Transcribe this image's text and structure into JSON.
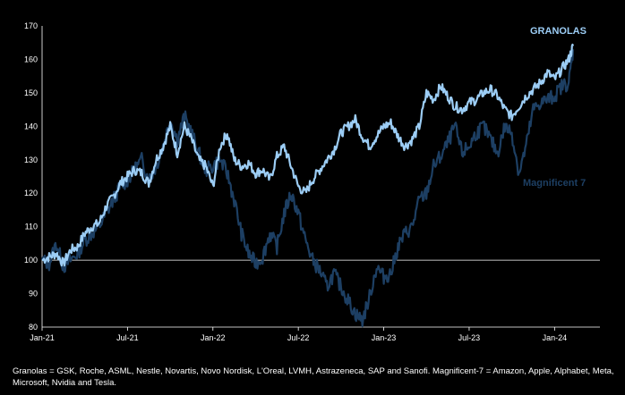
{
  "footnote": "Granolas = GSK, Roche, ASML, Nestle, Novartis, Novo Nordisk, L'Oreal, LVMH, Astrazeneca, SAP and Sanofi. Magnificent-7 = Amazon, Apple, Alphabet, Meta, Microsoft, Nvidia and Tesla.",
  "colors": {
    "granolas": "#9ccdf5",
    "magnificent": "#1d3f63",
    "axis": "#ffffff"
  },
  "chart_data": {
    "type": "line",
    "title": "",
    "xlabel": "",
    "ylabel": "",
    "ylim": [
      80,
      170
    ],
    "xlim": [
      0,
      40
    ],
    "reference_line": 100,
    "x_ticks": [
      {
        "x": 0,
        "label": "Jan-21"
      },
      {
        "x": 6,
        "label": "Jul-21"
      },
      {
        "x": 12,
        "label": "Jan-22"
      },
      {
        "x": 18,
        "label": "Jul-22"
      },
      {
        "x": 24,
        "label": "Jan-23"
      },
      {
        "x": 30,
        "label": "Jul-23"
      },
      {
        "x": 36,
        "label": "Jan-24"
      }
    ],
    "y_ticks": [
      80,
      90,
      100,
      110,
      120,
      130,
      140,
      150,
      160,
      170
    ],
    "series": [
      {
        "name": "GRANOLAS",
        "x": [
          0,
          0.5,
          1,
          1.5,
          2,
          2.5,
          3,
          3.5,
          4,
          4.5,
          5,
          5.5,
          6,
          6.5,
          7,
          7.5,
          8,
          8.5,
          9,
          9.5,
          10,
          10.5,
          11,
          11.5,
          12,
          12.5,
          13,
          13.5,
          14,
          14.5,
          15,
          15.5,
          16,
          16.5,
          17,
          17.5,
          18,
          18.5,
          19,
          19.5,
          20,
          20.5,
          21,
          21.5,
          22,
          22.5,
          23,
          23.5,
          24,
          24.5,
          25,
          25.5,
          26,
          26.5,
          27,
          27.5,
          28,
          28.5,
          29,
          29.5,
          30,
          30.5,
          31,
          31.5,
          32,
          32.5,
          33,
          33.5,
          34,
          34.5,
          35,
          35.5,
          36,
          36.5,
          37,
          37.3
        ],
        "values": [
          100,
          101,
          102,
          99,
          103,
          104,
          108,
          110,
          111,
          116,
          119,
          123,
          125,
          127,
          126,
          123,
          130,
          134,
          140,
          132,
          140,
          136,
          130,
          128,
          122,
          134,
          138,
          130,
          128,
          129,
          126,
          127,
          124,
          131,
          134,
          128,
          122,
          120,
          124,
          127,
          130,
          133,
          138,
          140,
          142,
          137,
          134,
          137,
          140,
          141,
          137,
          134,
          136,
          140,
          150,
          148,
          152,
          149,
          146,
          145,
          147,
          148,
          150,
          151,
          149,
          145,
          143,
          146,
          149,
          151,
          153,
          156,
          154,
          157,
          160,
          164
        ]
      },
      {
        "name": "Magnificent 7",
        "x": [
          0,
          0.5,
          1,
          1.5,
          2,
          2.5,
          3,
          3.5,
          4,
          4.5,
          5,
          5.5,
          6,
          6.5,
          7,
          7.5,
          8,
          8.5,
          9,
          9.5,
          10,
          10.5,
          11,
          11.5,
          12,
          12.5,
          13,
          13.5,
          14,
          14.5,
          15,
          15.5,
          16,
          16.5,
          17,
          17.5,
          18,
          18.5,
          19,
          19.5,
          20,
          20.5,
          21,
          21.5,
          22,
          22.5,
          23,
          23.5,
          24,
          24.5,
          25,
          25.5,
          26,
          26.5,
          27,
          27.5,
          28,
          28.5,
          29,
          29.5,
          30,
          30.5,
          31,
          31.5,
          32,
          32.5,
          33,
          33.5,
          34,
          34.5,
          35,
          35.5,
          36,
          36.5,
          37,
          37.3
        ],
        "values": [
          100,
          99,
          105,
          98,
          100,
          102,
          106,
          108,
          110,
          114,
          118,
          122,
          124,
          127,
          130,
          124,
          128,
          134,
          142,
          136,
          143,
          138,
          132,
          127,
          128,
          130,
          126,
          118,
          108,
          102,
          99,
          101,
          108,
          104,
          114,
          120,
          114,
          106,
          100,
          97,
          92,
          96,
          92,
          88,
          84,
          82,
          89,
          98,
          95,
          96,
          104,
          108,
          110,
          118,
          120,
          128,
          131,
          135,
          140,
          132,
          134,
          138,
          140,
          136,
          132,
          140,
          138,
          126,
          134,
          145,
          147,
          148,
          149,
          152,
          153,
          163
        ]
      }
    ]
  }
}
